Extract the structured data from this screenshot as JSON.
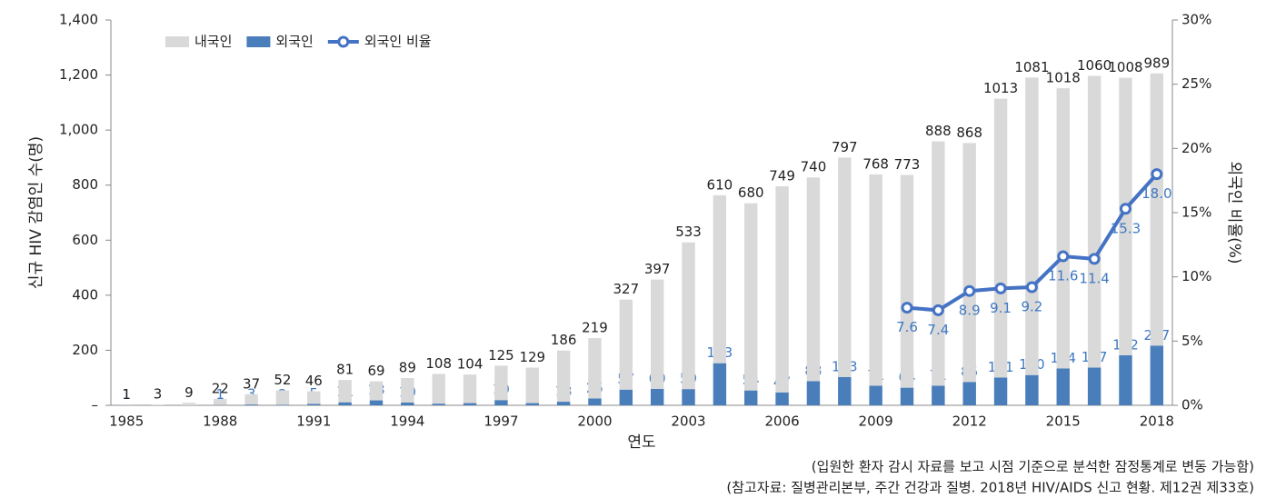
{
  "chart_data": {
    "type": "bar",
    "y_label": "신규 HIV 감염인 수(명)",
    "y2_label": "외국인 비율(%)",
    "x_label": "연도",
    "notes": [
      "(입원한 환자 감시 자료를 보고 시점 기준으로 분석한 잠정통계로 변동 가능함)",
      "(참고자료: 질병관리본부, 주간 건강과 질병. 2018년 HIV/AIDS 신고 현황. 제12권 제33호)"
    ],
    "categories": [
      "1985",
      null,
      null,
      "1988",
      null,
      null,
      "1991",
      null,
      null,
      "1994",
      null,
      null,
      "1997",
      null,
      null,
      "2000",
      null,
      null,
      "2003",
      null,
      null,
      "2006",
      null,
      null,
      "2009",
      null,
      null,
      "2012",
      null,
      null,
      "2015",
      null,
      null,
      "2018"
    ],
    "series": [
      {
        "name": "외국인",
        "type": "bar",
        "color": "#4a7ebb",
        "values": [
          1,
          null,
          null,
          1,
          3,
          2,
          5,
          11,
          18,
          10,
          6,
          8,
          19,
          8,
          13,
          25,
          57,
          60,
          59,
          153,
          54,
          47,
          88,
          103,
          71,
          64,
          71,
          85,
          101,
          110,
          134,
          137,
          182,
          217
        ]
      },
      {
        "name": "내국인",
        "type": "bar",
        "color": "#d9d9d9",
        "values": [
          1,
          3,
          9,
          22,
          37,
          52,
          46,
          81,
          69,
          89,
          108,
          104,
          125,
          129,
          186,
          219,
          327,
          397,
          533,
          610,
          680,
          749,
          740,
          797,
          768,
          773,
          888,
          868,
          1013,
          1081,
          1018,
          1060,
          1008,
          989
        ]
      },
      {
        "name": "외국인 비율",
        "type": "line",
        "axis": "y2",
        "color": "#4472c4",
        "values": [
          null,
          null,
          null,
          null,
          null,
          null,
          null,
          null,
          null,
          null,
          null,
          null,
          null,
          null,
          null,
          null,
          null,
          null,
          null,
          null,
          null,
          null,
          null,
          null,
          null,
          7.6,
          7.4,
          8.9,
          9.1,
          9.2,
          11.6,
          11.4,
          15.3,
          18.0
        ],
        "value_labels": [
          null,
          null,
          null,
          null,
          null,
          null,
          null,
          null,
          null,
          null,
          null,
          null,
          null,
          null,
          null,
          null,
          null,
          null,
          null,
          null,
          null,
          null,
          null,
          null,
          null,
          "7.6",
          "7.4",
          "8.9",
          "9.1",
          "9.2",
          "11.6",
          "11.4",
          "15.3",
          "18.0"
        ]
      }
    ],
    "stacked": true,
    "ylim": [
      0,
      1400
    ],
    "yticks": [
      {
        "value": 0,
        "label": "–"
      },
      200,
      400,
      600,
      800,
      {
        "value": 1000,
        "label": "1,000"
      },
      {
        "value": 1200,
        "label": "1,200"
      },
      {
        "value": 1400,
        "label": "1,400"
      }
    ],
    "y2lim": [
      0,
      30
    ],
    "y2ticks": [
      {
        "value": 0,
        "label": "0%"
      },
      {
        "value": 5,
        "label": "5%"
      },
      {
        "value": 10,
        "label": "10%"
      },
      {
        "value": 15,
        "label": "15%"
      },
      {
        "value": 20,
        "label": "20%"
      },
      {
        "value": 25,
        "label": "25%"
      },
      {
        "value": 30,
        "label": "30%"
      }
    ],
    "legend": "upper left"
  }
}
